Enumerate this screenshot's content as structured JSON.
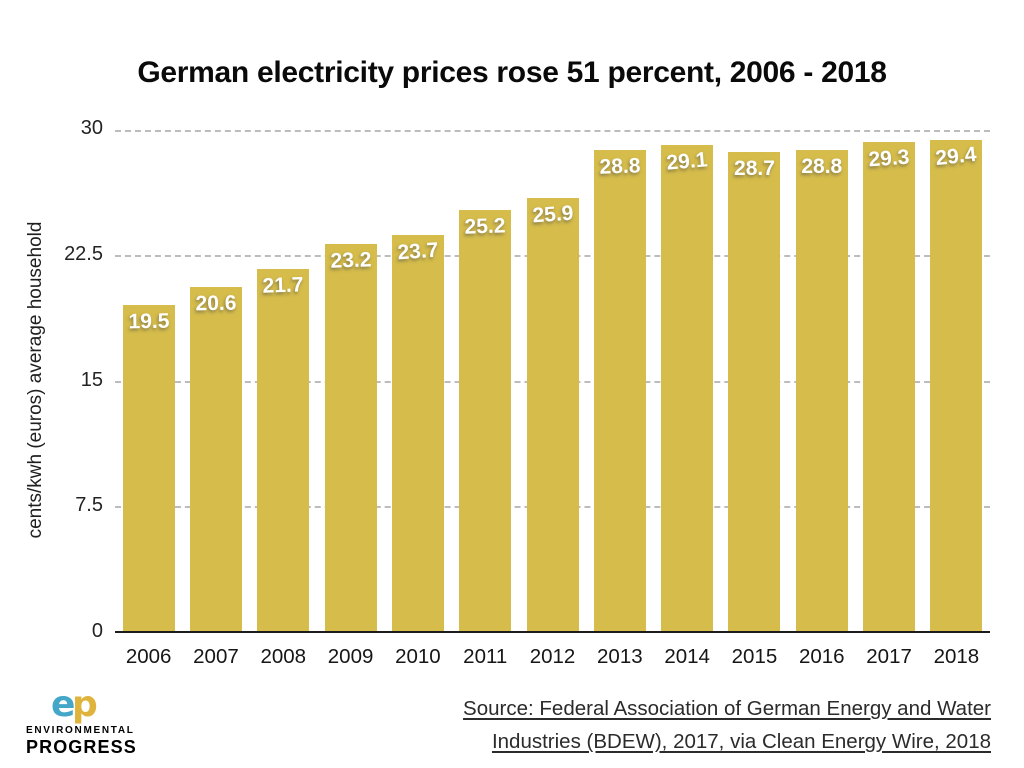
{
  "title": "German electricity prices rose 51 percent, 2006 - 2018",
  "chart_data": {
    "type": "bar",
    "title": "German electricity prices rose 51 percent, 2006 - 2018",
    "categories": [
      "2006",
      "2007",
      "2008",
      "2009",
      "2010",
      "2011",
      "2012",
      "2013",
      "2014",
      "2015",
      "2016",
      "2017",
      "2018"
    ],
    "values": [
      19.5,
      20.6,
      21.7,
      23.2,
      23.7,
      25.2,
      25.9,
      28.8,
      29.1,
      28.7,
      28.8,
      29.3,
      29.4
    ],
    "value_labels": [
      "19.5",
      "20.6",
      "21.7",
      "23.2",
      "23.7",
      "25.2",
      "25.9",
      "28.8",
      "29.1",
      "28.7",
      "28.8",
      "29.3",
      "29.4"
    ],
    "xlabel": "",
    "ylabel": "cents/kwh (euros) average household",
    "ylim": [
      0,
      30
    ],
    "yticks": [
      "0",
      "7.5",
      "15",
      "22.5",
      "30"
    ],
    "grid": "horizontal dashed lines at yticks, behind bars",
    "legend": "none",
    "bar_color": "#d5bc4b",
    "value_label_color": "#ffffff",
    "label_tilts_deg": [
      -1,
      -1,
      -2,
      -2,
      -4,
      -2,
      -4,
      -2,
      -5,
      0,
      0,
      -4,
      -6
    ]
  },
  "footer": {
    "source": {
      "line1": "Source: Federal Association of German Energy and Water",
      "line2": "Industries (BDEW), 2017, via Clean Energy Wire, 2018"
    },
    "logo": {
      "monogram_e": "e",
      "monogram_p": "p",
      "name_line1": "ENVIRONMENTAL",
      "name_line2": "PROGRESS",
      "blue": "#45a7c8",
      "gold": "#dfb43c"
    }
  }
}
